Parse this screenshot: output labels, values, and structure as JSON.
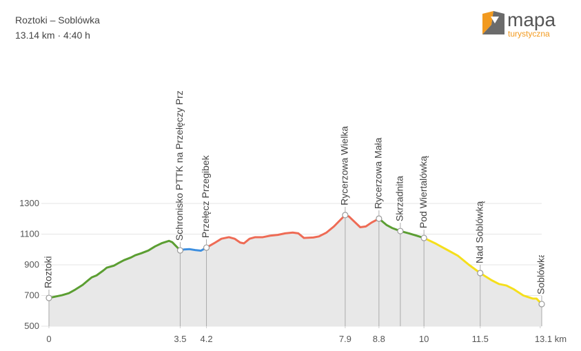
{
  "chart_data": {
    "type": "elevation",
    "title": "Roztoki – Soblówka",
    "subtitle": "13.14 km · 4:40 h",
    "xlim": [
      0,
      13.14
    ],
    "xticks": [
      0,
      3.5,
      4.2,
      7.9,
      8.8,
      10,
      11.5,
      {
        "value": 13.1,
        "label": "13.1 km"
      }
    ],
    "ylim": [
      500,
      1300
    ],
    "yticks": [
      500,
      700,
      900,
      1100,
      1300
    ],
    "grid": true,
    "area_color": "#e8e8e8",
    "series": [
      {
        "color": "#5b9e32",
        "x": [
          0,
          0.35,
          0.53,
          0.7,
          0.9,
          1.03,
          1.14,
          1.27,
          1.45,
          1.54,
          1.73,
          1.86,
          2.0,
          2.19,
          2.3,
          2.46,
          2.65,
          2.83,
          3.02,
          3.2,
          3.29,
          3.5
        ],
        "values": [
          684,
          702,
          715,
          738,
          769,
          796,
          818,
          831,
          863,
          881,
          894,
          912,
          930,
          948,
          962,
          975,
          993,
          1020,
          1042,
          1056,
          1047,
          994
        ]
      },
      {
        "color": "#3d8fe0",
        "x": [
          3.5,
          3.6,
          3.75,
          3.9,
          4.05,
          4.2
        ],
        "values": [
          994,
          1000,
          1002,
          996,
          992,
          1012
        ]
      },
      {
        "color": "#ee6b55",
        "x": [
          4.2,
          4.4,
          4.6,
          4.8,
          4.95,
          5.1,
          5.2,
          5.35,
          5.5,
          5.7,
          5.9,
          6.1,
          6.3,
          6.5,
          6.65,
          6.8,
          7.05,
          7.2,
          7.4,
          7.6,
          7.8,
          7.9,
          8.0,
          8.15,
          8.3,
          8.45,
          8.6,
          8.8
        ],
        "values": [
          1012,
          1040,
          1070,
          1080,
          1070,
          1045,
          1040,
          1070,
          1080,
          1080,
          1090,
          1095,
          1105,
          1110,
          1105,
          1075,
          1078,
          1085,
          1110,
          1150,
          1200,
          1224,
          1215,
          1180,
          1145,
          1150,
          1175,
          1201
        ]
      },
      {
        "color": "#5b9e32",
        "x": [
          8.8,
          9.0,
          9.15,
          9.37,
          9.6,
          9.8,
          10
        ],
        "values": [
          1201,
          1160,
          1140,
          1120,
          1105,
          1090,
          1075
        ]
      },
      {
        "color": "#f5df1c",
        "x": [
          10,
          10.3,
          10.6,
          10.9,
          11.2,
          11.5,
          11.8,
          12.0,
          12.2,
          12.4,
          12.65,
          12.9,
          13.0,
          13.14
        ],
        "values": [
          1075,
          1040,
          1000,
          960,
          900,
          846,
          800,
          775,
          765,
          740,
          700,
          680,
          680,
          644
        ]
      }
    ],
    "waypoints": [
      {
        "label": "Roztoki",
        "x": 0,
        "elevation": 684
      },
      {
        "label": "Schronisko PTTK na Przełęczy Prz",
        "x": 3.5,
        "elevation": 994
      },
      {
        "label": "Przełęcz Przegibek",
        "x": 4.2,
        "elevation": 1012
      },
      {
        "label": "Rycerzowa Wielka",
        "x": 7.9,
        "elevation": 1224
      },
      {
        "label": "Rycerzowa Mała",
        "x": 8.8,
        "elevation": 1201
      },
      {
        "label": "Skrzadnita",
        "x": 9.37,
        "elevation": 1120
      },
      {
        "label": "Pod Wiertalówką",
        "x": 10,
        "elevation": 1075
      },
      {
        "label": "Nad Soblówką",
        "x": 11.5,
        "elevation": 846
      },
      {
        "label": "Soblówka",
        "x": 13.14,
        "elevation": 644
      }
    ]
  },
  "logo": {
    "main": "mapa",
    "sub": "turystyczna"
  }
}
